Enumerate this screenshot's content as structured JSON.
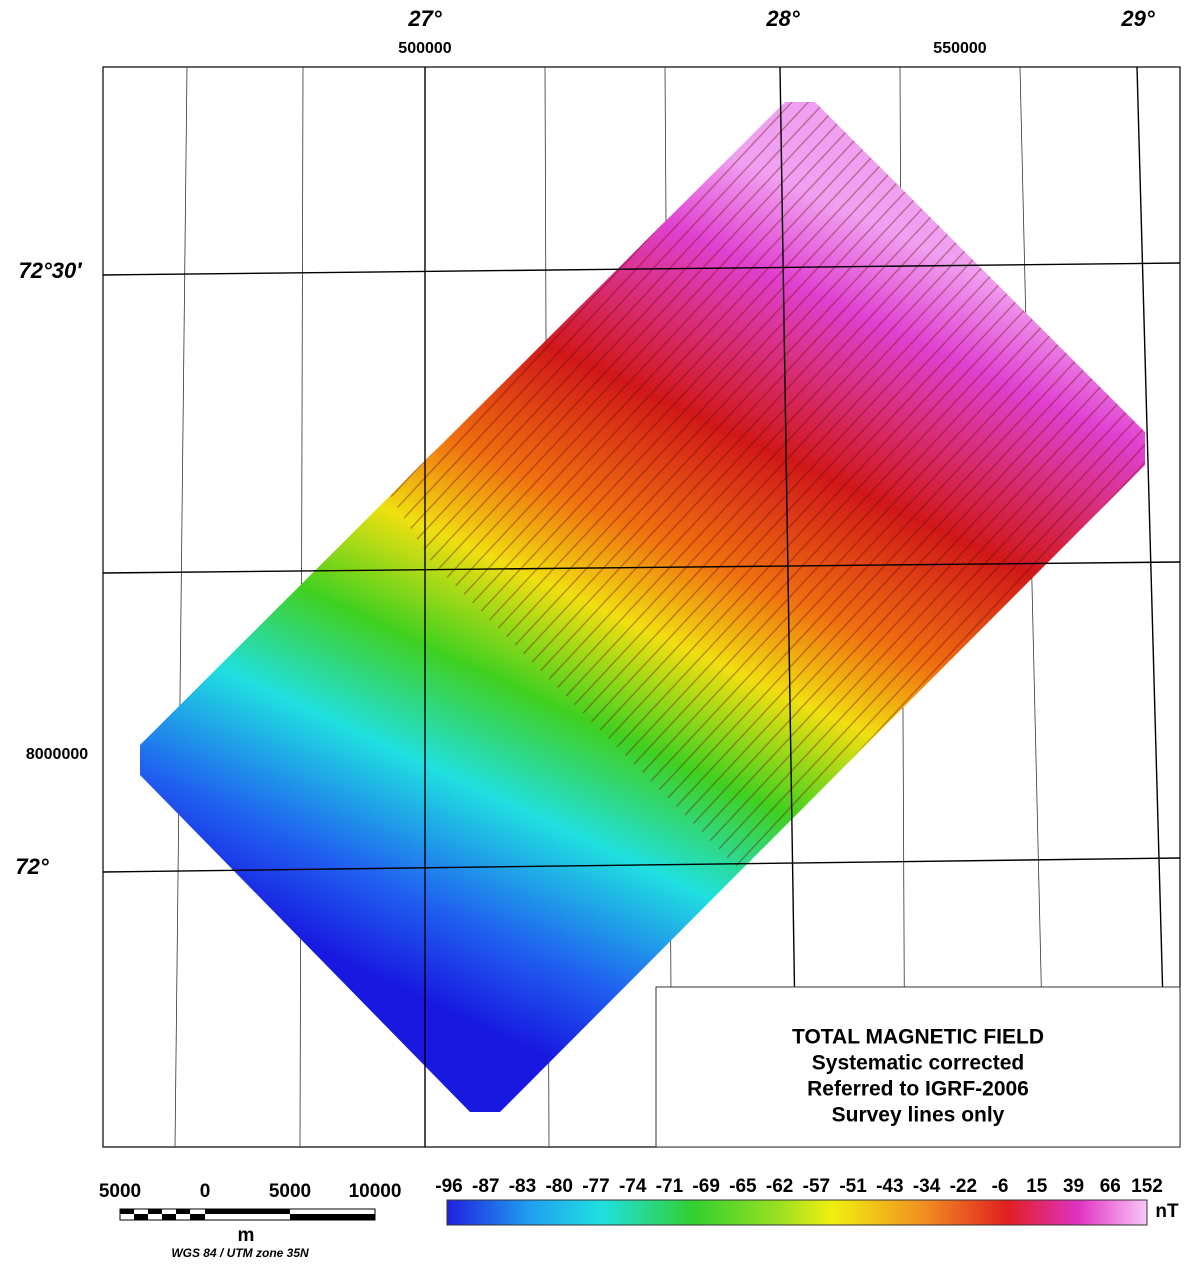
{
  "map": {
    "lon_labels": [
      "27°",
      "28°",
      "29°"
    ],
    "easting_labels": [
      "500000",
      "550000"
    ],
    "lat_labels": [
      "72°30′",
      "72°"
    ],
    "northing_labels": [
      "8000000"
    ],
    "info": {
      "lines": [
        "TOTAL MAGNETIC FIELD",
        "Systematic corrected",
        "Referred to IGRF-2006",
        "Survey lines only"
      ]
    },
    "scale_bar": {
      "labels": [
        "5000",
        "0",
        "5000",
        "10000"
      ],
      "unit": "m",
      "projection": "WGS 84 / UTM zone 35N"
    },
    "color_scale": {
      "ticks": [
        -96,
        -87,
        -83,
        -80,
        -77,
        -74,
        -71,
        -69,
        -65,
        -62,
        -57,
        -51,
        -43,
        -34,
        -22,
        -6,
        15,
        39,
        66,
        152
      ],
      "unit": "nT"
    }
  }
}
